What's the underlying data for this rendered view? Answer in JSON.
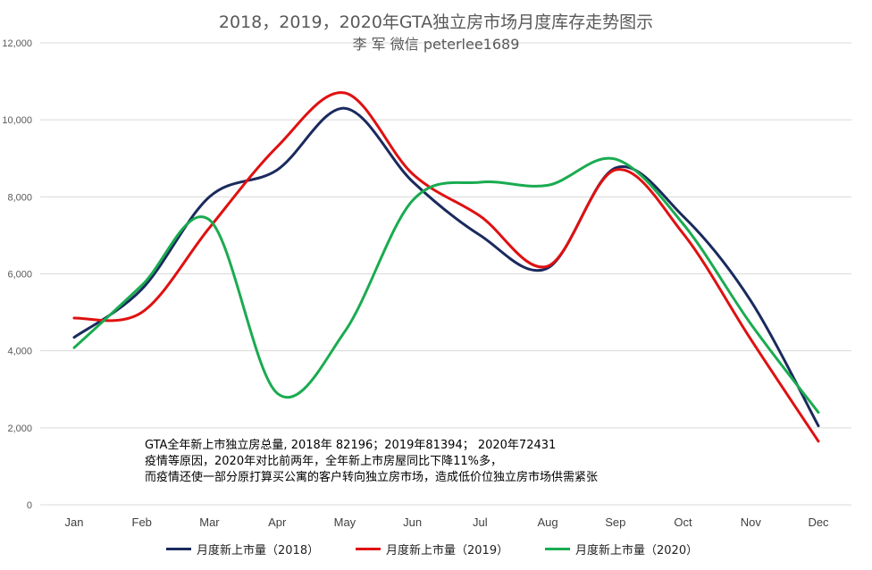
{
  "chart_data": {
    "type": "line",
    "title": "2018，2019，2020年GTA独立房市场月度库存走势图示",
    "subtitle": "李 军  微信 peterlee1689",
    "categories": [
      "Jan",
      "Feb",
      "Mar",
      "Apr",
      "May",
      "Jun",
      "Jul",
      "Aug",
      "Sep",
      "Oct",
      "Nov",
      "Dec"
    ],
    "ylim": [
      0,
      12000
    ],
    "yticks": [
      0,
      2000,
      4000,
      6000,
      8000,
      10000,
      12000
    ],
    "ytick_labels": [
      "0",
      "2,000",
      "4,000",
      "6,000",
      "8,000",
      "10,000",
      "12,000"
    ],
    "grid": true,
    "legend_position": "bottom",
    "series": [
      {
        "name": "月度新上市量（2018）",
        "color": "#1a2a5e",
        "values": [
          4350,
          5600,
          8000,
          8700,
          10300,
          8400,
          7000,
          6150,
          8750,
          7500,
          5300,
          2050
        ]
      },
      {
        "name": "月度新上市量（2019）",
        "color": "#e01010",
        "values": [
          4850,
          5000,
          7200,
          9300,
          10700,
          8600,
          7500,
          6200,
          8700,
          7050,
          4300,
          1650
        ]
      },
      {
        "name": "月度新上市量（2020）",
        "color": "#1aab50",
        "values": [
          4080,
          5700,
          7400,
          2900,
          4500,
          7900,
          8380,
          8300,
          8980,
          7300,
          4700,
          2400
        ]
      }
    ],
    "annotations": [
      "GTA全年新上市独立房总量, 2018年 82196；2019年81394；  2020年72431",
      "疫情等原因，2020年对比前两年，全年新上市房屋同比下降11%多，",
      "而疫情还使一部分原打算买公寓的客户转向独立房市场，造成低价位独立房市场供需紧张"
    ]
  }
}
